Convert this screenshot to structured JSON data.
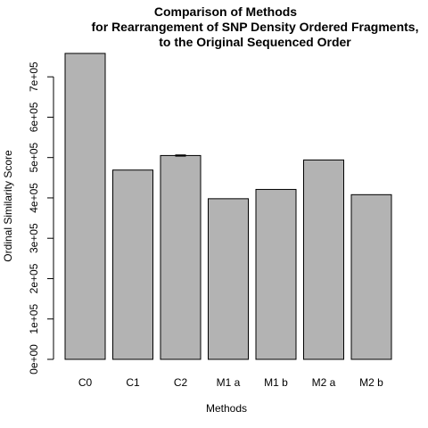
{
  "chart_data": {
    "type": "bar",
    "title_lines": [
      "Comparison of Methods",
      "for Rearrangement of SNP Density Ordered Fragments,",
      "to the Original Sequenced Order"
    ],
    "xlabel": "Methods",
    "ylabel": "Ordinal Similarity Score",
    "categories": [
      "C0",
      "C1",
      "C2",
      "M1 a",
      "M1 b",
      "M2 a",
      "M2 b"
    ],
    "values": [
      758000,
      469000,
      505000,
      398000,
      421000,
      494000,
      408000
    ],
    "errors": [
      0,
      0,
      1500,
      0,
      0,
      0,
      0
    ],
    "ylim": [
      0,
      760000
    ],
    "yticks": [
      0,
      100000,
      200000,
      300000,
      400000,
      500000,
      600000,
      700000
    ],
    "ytick_labels": [
      "0e+00",
      "1e+05",
      "2e+05",
      "3e+05",
      "4e+05",
      "5e+05",
      "6e+05",
      "7e+05"
    ],
    "bar_color": "#b3b3b3",
    "grid": false,
    "legend": "none"
  }
}
